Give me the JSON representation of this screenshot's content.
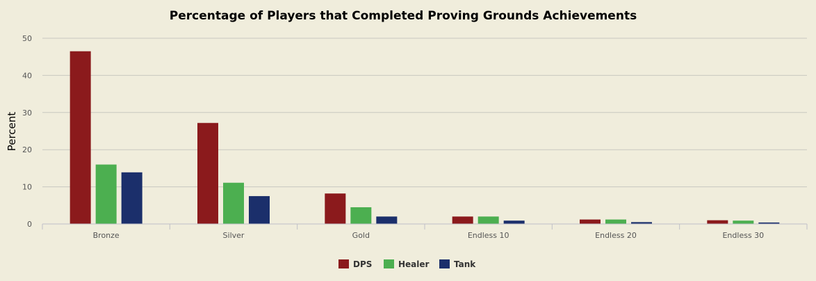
{
  "chart_data": {
    "type": "bar",
    "title": "Percentage of Players that Completed Proving Grounds Achievements",
    "xlabel": "",
    "ylabel": "Percent",
    "ylim": [
      0,
      50
    ],
    "yticks": [
      0,
      10,
      20,
      30,
      40,
      50
    ],
    "categories": [
      "Bronze",
      "Silver",
      "Gold",
      "Endless 10",
      "Endless 20",
      "Endless 30"
    ],
    "series": [
      {
        "name": "DPS",
        "color": "#8b1a1c",
        "values": [
          46.5,
          27.2,
          8.2,
          2.0,
          1.2,
          1.0
        ]
      },
      {
        "name": "Healer",
        "color": "#4caf50",
        "values": [
          16.0,
          11.1,
          4.5,
          2.0,
          1.2,
          0.9
        ]
      },
      {
        "name": "Tank",
        "color": "#1b2f6b",
        "values": [
          13.9,
          7.5,
          2.0,
          0.9,
          0.5,
          0.4
        ]
      }
    ],
    "grid": true,
    "legend_position": "bottom-center",
    "background": "#f0eddc",
    "grid_color": "#c8c8c0"
  }
}
